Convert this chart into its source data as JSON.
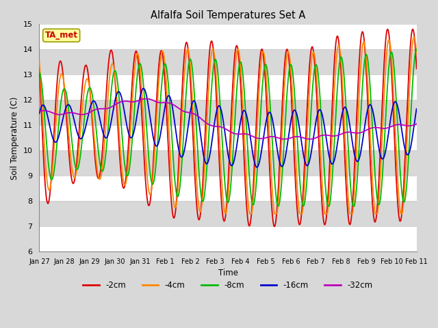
{
  "title": "Alfalfa Soil Temperatures Set A",
  "xlabel": "Time",
  "ylabel": "Soil Temperature (C)",
  "ylim": [
    6.0,
    15.0
  ],
  "yticks": [
    6.0,
    7.0,
    8.0,
    9.0,
    10.0,
    11.0,
    12.0,
    13.0,
    14.0,
    15.0
  ],
  "colors": {
    "-2cm": "#dd0000",
    "-4cm": "#ff8800",
    "-8cm": "#00bb00",
    "-16cm": "#0000cc",
    "-32cm": "#bb00bb"
  },
  "legend_label": "TA_met",
  "bg_color": "#d8d8d8",
  "band_colors": [
    "#d8d8d8",
    "#e8e8e8"
  ],
  "grid_line_color": "#ffffff",
  "xtick_labels": [
    "Jan 27",
    "Jan 28",
    "Jan 29",
    "Jan 30",
    "Jan 31",
    "Feb 1",
    "Feb 2",
    "Feb 3",
    "Feb 4",
    "Feb 5",
    "Feb 6",
    "Feb 7",
    "Feb 8",
    "Feb 9",
    "Feb 10",
    "Feb 11"
  ]
}
